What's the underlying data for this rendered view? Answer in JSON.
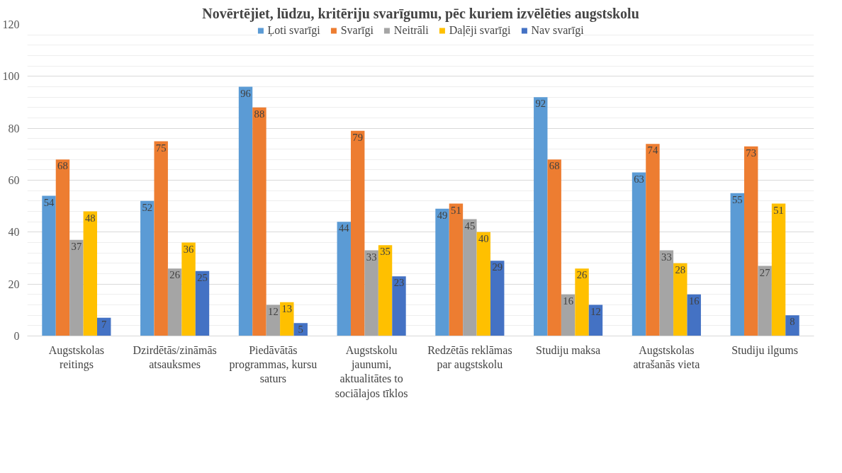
{
  "chart_data": {
    "type": "bar",
    "title": "Novērtējiet, lūdzu, kritēriju svarīgumu, pēc kuriem izvēlēties augstskolu",
    "categories": [
      "Augstskolas\nreitings",
      "Dzirdētās/zināmās\natsauksmes",
      "Piedāvātās\nprogrammas, kursu\nsaturs",
      "Augstskolu\njaunumi,\naktualitātes to\nsociālajos tīklos",
      "Redzētās reklāmas\npar augstskolu",
      "Studiju maksa",
      "Augstskolas\natrašanās vieta",
      "Studiju ilgums"
    ],
    "series": [
      {
        "name": "Ļoti svarīgi",
        "color": "#5b9bd5",
        "values": [
          54,
          52,
          96,
          44,
          49,
          92,
          63,
          55
        ]
      },
      {
        "name": "Svarīgi",
        "color": "#ed7d31",
        "values": [
          68,
          75,
          88,
          79,
          51,
          68,
          74,
          73
        ]
      },
      {
        "name": "Neitrāli",
        "color": "#a5a5a5",
        "values": [
          37,
          26,
          12,
          33,
          45,
          16,
          33,
          27
        ]
      },
      {
        "name": "Daļēji svarīgi",
        "color": "#ffc000",
        "values": [
          48,
          36,
          13,
          35,
          40,
          26,
          28,
          51
        ]
      },
      {
        "name": "Nav svarīgi",
        "color": "#4472c4",
        "values": [
          7,
          25,
          5,
          23,
          29,
          12,
          16,
          8
        ]
      }
    ],
    "ylim": [
      0,
      120
    ],
    "yticks": [
      0,
      20,
      40,
      60,
      80,
      100,
      120
    ],
    "grid": "y",
    "legend": "top",
    "data_labels": true
  }
}
